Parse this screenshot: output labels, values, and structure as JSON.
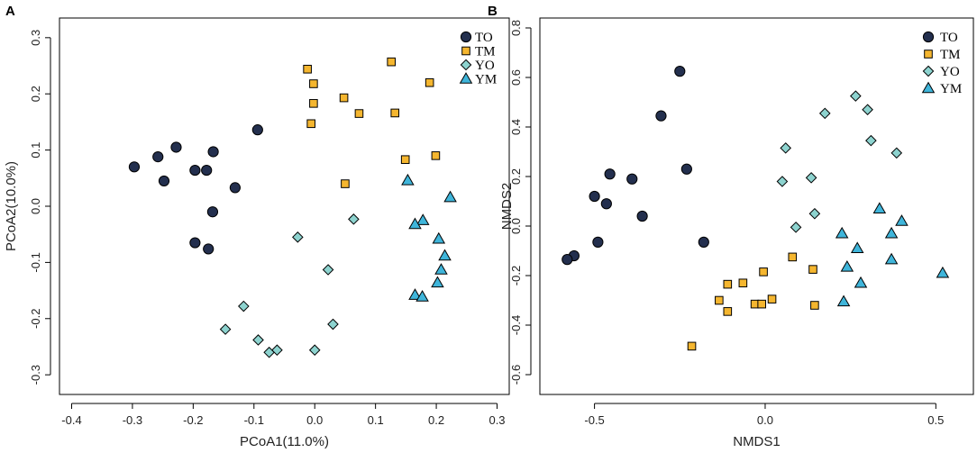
{
  "styles": {
    "TO": {
      "shape": "circle",
      "fill": "#232f4e"
    },
    "TM": {
      "shape": "square",
      "fill": "#f5b62f"
    },
    "YO": {
      "shape": "diamond",
      "fill": "#8dd3cf"
    },
    "YM": {
      "shape": "triangle",
      "fill": "#3fb5da"
    }
  },
  "chart_data": [
    {
      "panel": "A",
      "type": "scatter",
      "xlabel": "PCoA1(11.0%)",
      "ylabel": "PCoA2(10.0%)",
      "xlim": [
        -0.42,
        0.32
      ],
      "ylim": [
        -0.335,
        0.335
      ],
      "xticks": [
        -0.4,
        -0.3,
        -0.2,
        -0.1,
        0.0,
        0.1,
        0.2,
        0.3
      ],
      "xtick_labels": [
        "-0.4",
        "-0.3",
        "-0.2",
        "-0.1",
        "0.0",
        "0.1",
        "0.2",
        "0.3"
      ],
      "yticks": [
        -0.3,
        -0.2,
        -0.1,
        0.0,
        0.1,
        0.2,
        0.3
      ],
      "ytick_labels": [
        "-0.3",
        "-0.2",
        "-0.1",
        "0.0",
        "0.1",
        "0.2",
        "0.3"
      ],
      "legend": [
        "TO",
        "TM",
        "YO",
        "YM"
      ],
      "legend_position": "top-right",
      "series": [
        {
          "name": "TO",
          "points": [
            [
              -0.297,
              0.07
            ],
            [
              -0.258,
              0.088
            ],
            [
              -0.248,
              0.045
            ],
            [
              -0.228,
              0.105
            ],
            [
              -0.197,
              0.064
            ],
            [
              -0.178,
              0.064
            ],
            [
              -0.167,
              0.097
            ],
            [
              -0.131,
              0.033
            ],
            [
              -0.094,
              0.136
            ],
            [
              -0.168,
              -0.01
            ],
            [
              -0.197,
              -0.065
            ],
            [
              -0.175,
              -0.076
            ]
          ]
        },
        {
          "name": "TM",
          "points": [
            [
              -0.012,
              0.244
            ],
            [
              -0.002,
              0.218
            ],
            [
              -0.002,
              0.183
            ],
            [
              -0.006,
              0.147
            ],
            [
              0.048,
              0.193
            ],
            [
              0.073,
              0.165
            ],
            [
              0.126,
              0.257
            ],
            [
              0.132,
              0.166
            ],
            [
              0.189,
              0.22
            ],
            [
              0.149,
              0.083
            ],
            [
              0.199,
              0.09
            ],
            [
              0.05,
              0.04
            ]
          ]
        },
        {
          "name": "YO",
          "points": [
            [
              -0.028,
              -0.055
            ],
            [
              0.064,
              -0.023
            ],
            [
              0.022,
              -0.113
            ],
            [
              -0.117,
              -0.178
            ],
            [
              -0.147,
              -0.219
            ],
            [
              -0.093,
              -0.238
            ],
            [
              0.03,
              -0.21
            ],
            [
              -0.075,
              -0.26
            ],
            [
              -0.062,
              -0.256
            ],
            [
              0.0,
              -0.256
            ]
          ]
        },
        {
          "name": "YM",
          "points": [
            [
              0.153,
              0.046
            ],
            [
              0.223,
              0.016
            ],
            [
              0.178,
              -0.025
            ],
            [
              0.165,
              -0.032
            ],
            [
              0.204,
              -0.058
            ],
            [
              0.214,
              -0.088
            ],
            [
              0.208,
              -0.113
            ],
            [
              0.202,
              -0.136
            ],
            [
              0.165,
              -0.158
            ],
            [
              0.177,
              -0.161
            ]
          ]
        }
      ]
    },
    {
      "panel": "B",
      "type": "scatter",
      "xlabel": "NMDS1",
      "ylabel": "NMDS2",
      "xlim": [
        -0.66,
        0.61
      ],
      "ylim": [
        -0.68,
        0.84
      ],
      "xticks": [
        -0.5,
        0.0,
        0.5
      ],
      "xtick_labels": [
        "-0.5",
        "0.0",
        "0.5"
      ],
      "yticks": [
        -0.6,
        -0.4,
        -0.2,
        0.0,
        0.2,
        0.4,
        0.6,
        0.8
      ],
      "ytick_labels": [
        "-0.6",
        "-0.4",
        "-0.2",
        "0.0",
        "0.2",
        "0.4",
        "0.6",
        "0.8"
      ],
      "legend": [
        "TO",
        "TM",
        "YO",
        "YM"
      ],
      "legend_position": "top-right",
      "series": [
        {
          "name": "TO",
          "points": [
            [
              -0.25,
              0.625
            ],
            [
              -0.305,
              0.445
            ],
            [
              -0.23,
              0.23
            ],
            [
              -0.455,
              0.21
            ],
            [
              -0.39,
              0.19
            ],
            [
              -0.5,
              0.12
            ],
            [
              -0.465,
              0.09
            ],
            [
              -0.36,
              0.04
            ],
            [
              -0.18,
              -0.065
            ],
            [
              -0.49,
              -0.065
            ],
            [
              -0.56,
              -0.12
            ],
            [
              -0.58,
              -0.135
            ]
          ]
        },
        {
          "name": "TM",
          "points": [
            [
              -0.11,
              -0.235
            ],
            [
              -0.065,
              -0.23
            ],
            [
              -0.005,
              -0.185
            ],
            [
              0.08,
              -0.125
            ],
            [
              0.14,
              -0.175
            ],
            [
              -0.135,
              -0.3
            ],
            [
              -0.11,
              -0.345
            ],
            [
              -0.03,
              -0.315
            ],
            [
              -0.01,
              -0.315
            ],
            [
              0.02,
              -0.295
            ],
            [
              0.145,
              -0.32
            ],
            [
              -0.215,
              -0.485
            ]
          ]
        },
        {
          "name": "YO",
          "points": [
            [
              0.265,
              0.525
            ],
            [
              0.3,
              0.47
            ],
            [
              0.175,
              0.455
            ],
            [
              0.31,
              0.345
            ],
            [
              0.385,
              0.295
            ],
            [
              0.06,
              0.315
            ],
            [
              0.05,
              0.18
            ],
            [
              0.135,
              0.195
            ],
            [
              0.145,
              0.05
            ],
            [
              0.09,
              -0.005
            ]
          ]
        },
        {
          "name": "YM",
          "points": [
            [
              0.335,
              0.07
            ],
            [
              0.4,
              0.02
            ],
            [
              0.225,
              -0.03
            ],
            [
              0.37,
              -0.03
            ],
            [
              0.27,
              -0.09
            ],
            [
              0.24,
              -0.165
            ],
            [
              0.37,
              -0.135
            ],
            [
              0.52,
              -0.19
            ],
            [
              0.28,
              -0.23
            ],
            [
              0.23,
              -0.305
            ]
          ]
        }
      ]
    }
  ]
}
